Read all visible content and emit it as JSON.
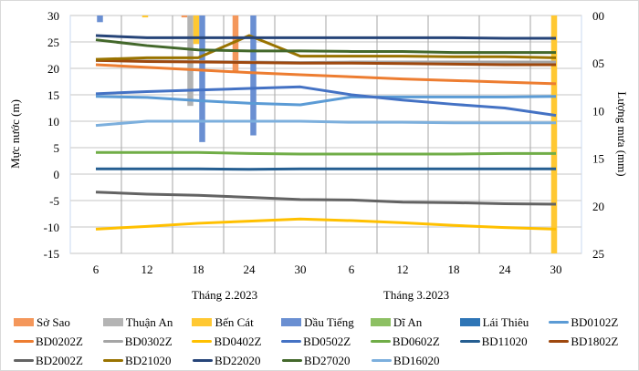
{
  "chart_data": {
    "type": "bar+line",
    "ylabel_left": "Mực nước (m)",
    "ylabel_right": "Lượng mưa (mm)",
    "ylim_left": [
      -15,
      30
    ],
    "yticks_left": [
      "-15",
      "-10",
      "-5",
      "0",
      "5",
      "10",
      "15",
      "20",
      "25",
      "30"
    ],
    "ylim_right": [
      0,
      25
    ],
    "right_axis_inverted": true,
    "yticks_right": [
      "00",
      "05",
      "10",
      "15",
      "20",
      "25"
    ],
    "categories": [
      "6",
      "12",
      "18",
      "24",
      "30",
      "6",
      "12",
      "18",
      "24",
      "30"
    ],
    "groups": [
      "Tháng 2.2023",
      "Tháng 3.2023"
    ],
    "grid": true,
    "legend_position": "bottom",
    "bar_series": [
      {
        "name": "Sở Sao",
        "color": "#F4975B",
        "values": [
          0,
          0,
          0.2,
          5.9,
          0,
          0,
          0,
          0,
          0,
          0
        ]
      },
      {
        "name": "Thuận An",
        "color": "#B4B4B4",
        "values": [
          0,
          0,
          9.5,
          0,
          0,
          0,
          0,
          0,
          0,
          0
        ]
      },
      {
        "name": "Bến Cát",
        "color": "#FFC832",
        "values": [
          0,
          0.2,
          3,
          0,
          0,
          0,
          0,
          0,
          0,
          25
        ]
      },
      {
        "name": "Dầu Tiếng",
        "color": "#6A8FD2",
        "values": [
          0.7,
          0,
          13.3,
          12.6,
          0,
          0,
          0,
          0,
          0,
          0
        ]
      },
      {
        "name": "Dĩ An",
        "color": "#8DC063",
        "values": [
          0,
          0,
          0,
          0,
          0,
          0,
          0,
          0,
          0,
          0
        ]
      },
      {
        "name": "Lái Thiêu",
        "color": "#2E75B6",
        "values": [
          0,
          0,
          0,
          0,
          0,
          0,
          0,
          0,
          0,
          0
        ]
      }
    ],
    "line_series": [
      {
        "name": "BD0102Z",
        "color": "#5B9BD5",
        "values": [
          14.7,
          14.5,
          13.9,
          13.4,
          13.1,
          14.6,
          14.6,
          14.6,
          14.6,
          14.7
        ]
      },
      {
        "name": "BD0202Z",
        "color": "#ED7D31",
        "values": [
          20.7,
          20.2,
          19.7,
          19.2,
          18.8,
          18.4,
          18.0,
          17.7,
          17.4,
          17.1
        ]
      },
      {
        "name": "BD0302Z",
        "color": "#A5A5A5",
        "values": [
          21.5,
          21.4,
          21.3,
          21.2,
          21.1,
          21.2,
          21.2,
          21.2,
          21.2,
          21.2
        ]
      },
      {
        "name": "BD0402Z",
        "color": "#FFC000",
        "values": [
          -10.4,
          -9.9,
          -9.3,
          -8.9,
          -8.5,
          -8.8,
          -9.2,
          -9.7,
          -10.1,
          -10.4
        ]
      },
      {
        "name": "BD0502Z",
        "color": "#4472C4",
        "values": [
          15.2,
          15.6,
          15.9,
          16.2,
          16.5,
          15.0,
          14.0,
          13.2,
          12.5,
          11.1
        ]
      },
      {
        "name": "BD0602Z",
        "color": "#70AD47",
        "values": [
          4.1,
          4.1,
          4.1,
          3.9,
          3.8,
          3.8,
          3.8,
          3.8,
          3.9,
          3.9
        ]
      },
      {
        "name": "BD11020",
        "color": "#255E91",
        "values": [
          1.0,
          1.0,
          1.0,
          0.9,
          1.0,
          1.0,
          1.0,
          1.0,
          1.0,
          1.0
        ]
      },
      {
        "name": "BD1802Z",
        "color": "#9E480E",
        "values": [
          21.5,
          21.3,
          21.2,
          21.1,
          21.0,
          21.0,
          20.9,
          20.8,
          20.7,
          20.7
        ]
      },
      {
        "name": "BD2002Z",
        "color": "#636363",
        "values": [
          -3.4,
          -3.8,
          -4.0,
          -4.4,
          -4.8,
          -4.9,
          -5.3,
          -5.4,
          -5.6,
          -5.7
        ]
      },
      {
        "name": "BD21020",
        "color": "#997300",
        "values": [
          21.7,
          22.0,
          22.0,
          26.2,
          22.3,
          22.3,
          22.3,
          22.2,
          22.2,
          22.0
        ]
      },
      {
        "name": "BD22020",
        "color": "#264478",
        "values": [
          26.2,
          25.8,
          25.8,
          25.8,
          25.8,
          25.8,
          25.8,
          25.8,
          25.7,
          25.7
        ]
      },
      {
        "name": "BD27020",
        "color": "#43682B",
        "values": [
          25.4,
          24.3,
          23.5,
          23.3,
          23.3,
          23.2,
          23.2,
          23.0,
          23.0,
          23.0
        ]
      },
      {
        "name": "BD16020",
        "color": "#7CAFDD",
        "values": [
          9.2,
          10.0,
          10.0,
          10.0,
          10.0,
          9.8,
          9.8,
          9.7,
          9.7,
          9.7
        ]
      }
    ]
  }
}
